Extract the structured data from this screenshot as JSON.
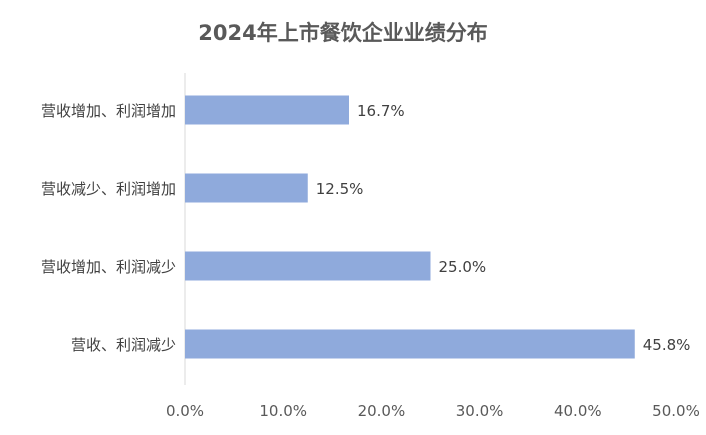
{
  "chart_data": {
    "type": "bar",
    "orientation": "horizontal",
    "title": "2024年上市餐饮企业业绩分布",
    "xlabel": "",
    "ylabel": "",
    "categories": [
      "营收增加、利润增加",
      "营收减少、利润增加",
      "营收增加、利润减少",
      "营收、利润减少"
    ],
    "values": [
      16.7,
      12.5,
      25.0,
      45.8
    ],
    "data_labels": [
      "16.7%",
      "12.5%",
      "25.0%",
      "45.8%"
    ],
    "xlim": [
      0,
      50
    ],
    "x_ticks": [
      0,
      10,
      20,
      30,
      40,
      50
    ],
    "x_tick_labels": [
      "0.0%",
      "10.0%",
      "20.0%",
      "30.0%",
      "40.0%",
      "50.0%"
    ],
    "grid": false,
    "legend": "none",
    "bar_color": "#8faadc",
    "axis_color": "#d9d9d9",
    "title_color": "#595959",
    "text_color": "#404040"
  }
}
